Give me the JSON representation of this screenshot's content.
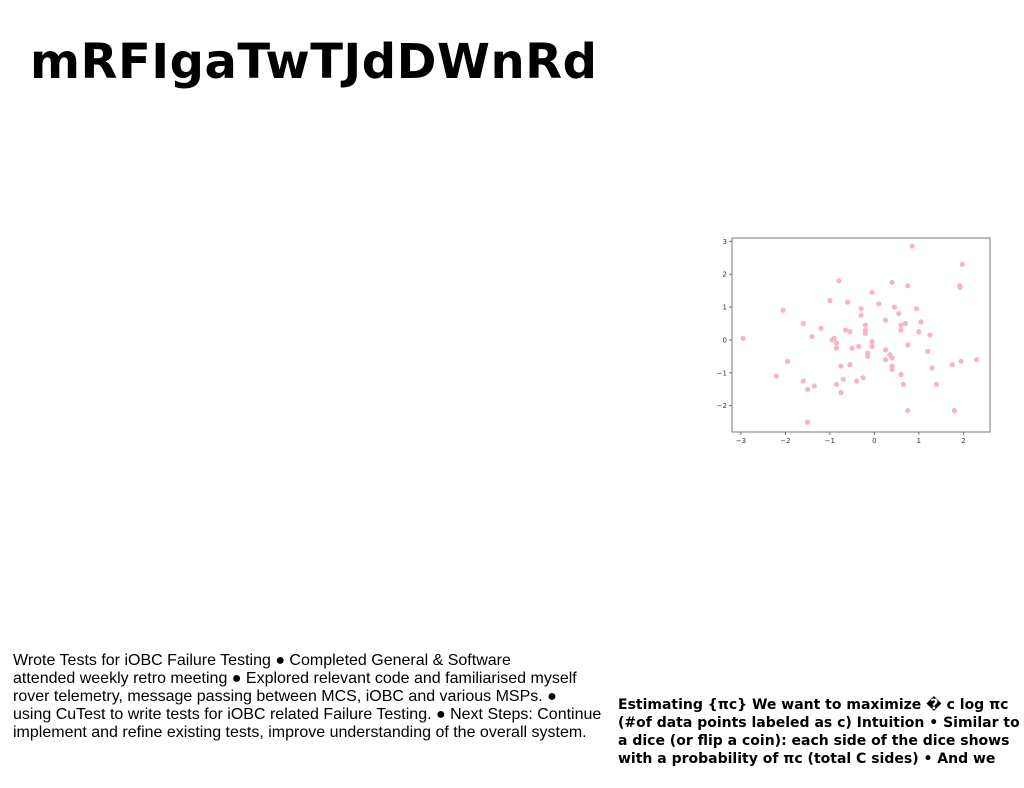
{
  "slide": {
    "title": "mRFIgaTwTJdDWnRd"
  },
  "body_text": {
    "lines": [
      "Wrote Tests for iOBC Failure Testing ● Completed General & Software",
      "attended weekly retro meeting ● Explored relevant code and familiarised myself",
      "rover telemetry, message passing between MCS, iOBC and various MSPs. ●",
      "using CuTest to write tests for iOBC related Failure Testing. ● Next Steps: Continue",
      "implement and refine existing tests, improve understanding of the overall system."
    ]
  },
  "side_text": {
    "lines": [
      "Estimating {πc} We want to maximize � c log πc",
      "(#of data points labeled as c) Intuition • Similar to",
      "a dice (or flip a coin): each side of the dice shows",
      "with a probability of πc (total C sides) • And we"
    ]
  },
  "chart_data": {
    "type": "scatter",
    "xlim": [
      -3.2,
      2.6
    ],
    "ylim": [
      -2.8,
      3.1
    ],
    "xticks": [
      "−3",
      "−2",
      "−1",
      "0",
      "1",
      "2"
    ],
    "xtick_values": [
      -3,
      -2,
      -1,
      0,
      1,
      2
    ],
    "yticks": [
      "3",
      "2",
      "1",
      "0",
      "−1",
      "−2"
    ],
    "ytick_values": [
      3,
      2,
      1,
      0,
      -1,
      -2
    ],
    "point_color": "#f4b6c2",
    "grid": false,
    "points": [
      [
        0.85,
        2.85
      ],
      [
        1.98,
        2.3
      ],
      [
        -0.8,
        1.8
      ],
      [
        0.4,
        1.75
      ],
      [
        0.75,
        1.65
      ],
      [
        1.92,
        1.65
      ],
      [
        1.93,
        1.6
      ],
      [
        -0.05,
        1.45
      ],
      [
        -1.0,
        1.2
      ],
      [
        -0.6,
        1.15
      ],
      [
        0.1,
        1.1
      ],
      [
        0.45,
        1.0
      ],
      [
        -0.3,
        0.95
      ],
      [
        0.95,
        0.95
      ],
      [
        -2.05,
        0.9
      ],
      [
        0.55,
        0.8
      ],
      [
        -0.3,
        0.75
      ],
      [
        0.25,
        0.6
      ],
      [
        1.05,
        0.55
      ],
      [
        0.7,
        0.5
      ],
      [
        -1.6,
        0.5
      ],
      [
        0.6,
        0.45
      ],
      [
        -0.2,
        0.45
      ],
      [
        -1.2,
        0.35
      ],
      [
        -0.65,
        0.3
      ],
      [
        0.6,
        0.3
      ],
      [
        -0.55,
        0.25
      ],
      [
        -0.2,
        0.3
      ],
      [
        1.0,
        0.25
      ],
      [
        -0.2,
        0.2
      ],
      [
        1.25,
        0.15
      ],
      [
        -1.4,
        0.1
      ],
      [
        -2.95,
        0.05
      ],
      [
        -0.9,
        0.05
      ],
      [
        -0.95,
        0.0
      ],
      [
        -0.05,
        -0.05
      ],
      [
        -0.85,
        -0.1
      ],
      [
        0.75,
        -0.15
      ],
      [
        -0.05,
        -0.2
      ],
      [
        -0.35,
        -0.2
      ],
      [
        -0.85,
        -0.25
      ],
      [
        -0.5,
        -0.25
      ],
      [
        0.25,
        -0.3
      ],
      [
        -0.15,
        -0.4
      ],
      [
        1.2,
        -0.35
      ],
      [
        -0.15,
        -0.5
      ],
      [
        0.35,
        -0.45
      ],
      [
        0.25,
        -0.6
      ],
      [
        0.4,
        -0.55
      ],
      [
        -1.95,
        -0.65
      ],
      [
        2.3,
        -0.6
      ],
      [
        1.95,
        -0.65
      ],
      [
        1.75,
        -0.75
      ],
      [
        -0.75,
        -0.8
      ],
      [
        -0.55,
        -0.75
      ],
      [
        0.4,
        -0.8
      ],
      [
        1.3,
        -0.85
      ],
      [
        0.4,
        -0.9
      ],
      [
        0.6,
        -1.05
      ],
      [
        -2.2,
        -1.1
      ],
      [
        -0.25,
        -1.15
      ],
      [
        -0.7,
        -1.2
      ],
      [
        -0.4,
        -1.25
      ],
      [
        -1.6,
        -1.25
      ],
      [
        -0.85,
        -1.35
      ],
      [
        0.65,
        -1.35
      ],
      [
        1.4,
        -1.35
      ],
      [
        -1.35,
        -1.4
      ],
      [
        -1.5,
        -1.5
      ],
      [
        -0.75,
        -1.6
      ],
      [
        0.75,
        -2.15
      ],
      [
        1.8,
        -2.15
      ],
      [
        -1.5,
        -2.5
      ]
    ]
  }
}
